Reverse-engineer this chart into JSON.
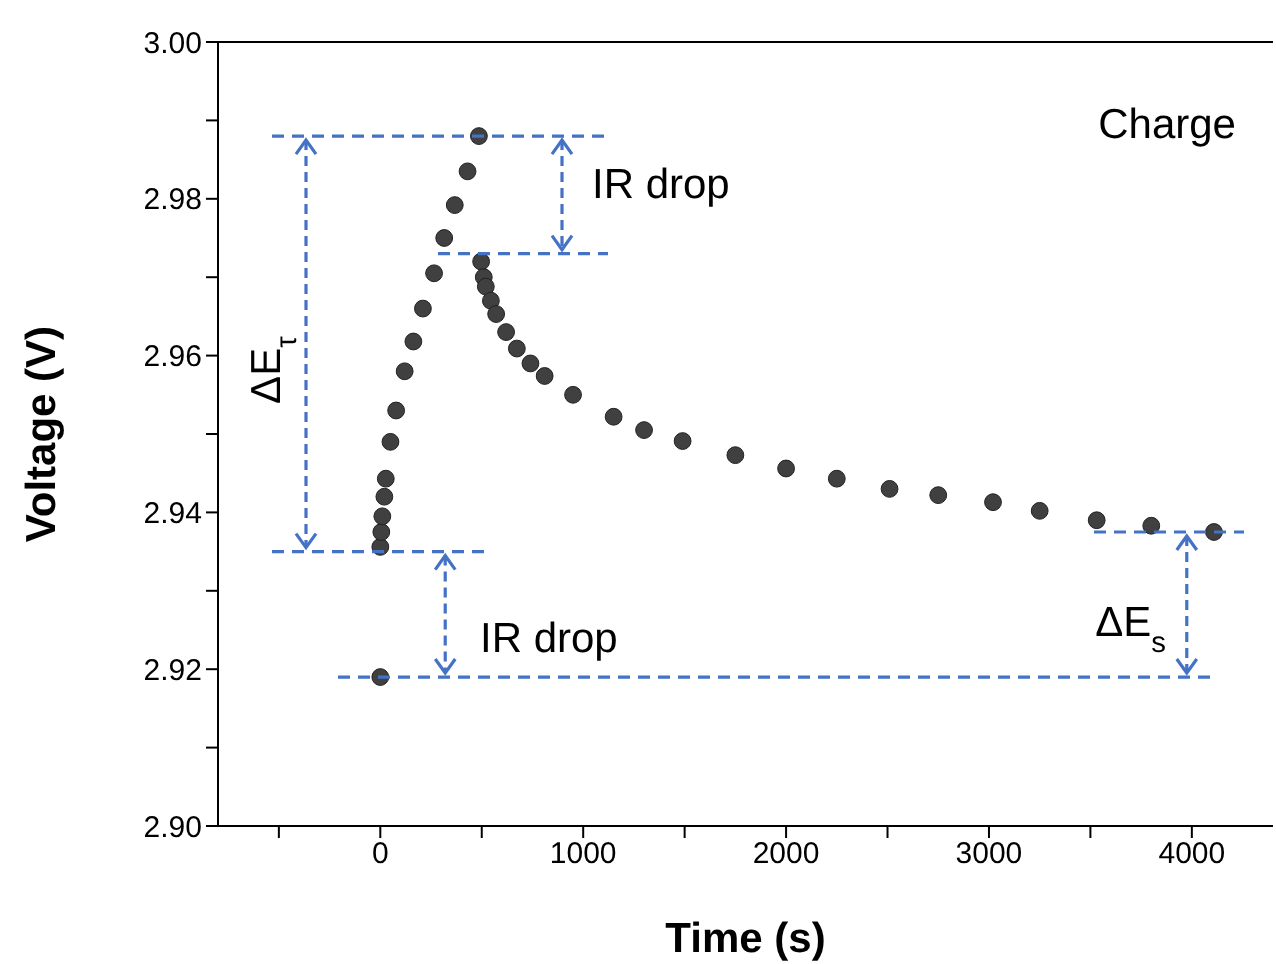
{
  "chart_data": {
    "type": "scatter",
    "xlabel": "Time (s)",
    "ylabel": "Voltage (V)",
    "xlim": [
      -800,
      4400
    ],
    "xticks": [
      {
        "value": -500,
        "label": null
      },
      0,
      {
        "value": 500,
        "label": null
      },
      1000,
      {
        "value": 1500,
        "label": null
      },
      2000,
      {
        "value": 2500,
        "label": null
      },
      3000,
      {
        "value": 3500,
        "label": null
      },
      4000
    ],
    "ylim": [
      2.9,
      3.0
    ],
    "yticks": [
      {
        "value": 2.9,
        "label": "2.90"
      },
      {
        "value": 2.91,
        "label": null
      },
      {
        "value": 2.92,
        "label": "2.92"
      },
      {
        "value": 2.93,
        "label": null
      },
      {
        "value": 2.94,
        "label": "2.94"
      },
      {
        "value": 2.95,
        "label": null
      },
      {
        "value": 2.96,
        "label": "2.96"
      },
      {
        "value": 2.97,
        "label": null
      },
      {
        "value": 2.98,
        "label": "2.98"
      },
      {
        "value": 2.99,
        "label": null
      },
      {
        "value": 3.0,
        "label": "3.00"
      }
    ],
    "ref_lines": [
      {
        "axis": "y",
        "value": 2.988,
        "color": "#4472c4",
        "line_style": "dashed"
      },
      {
        "axis": "y",
        "value": 2.973,
        "color": "#4472c4",
        "line_style": "dashed"
      },
      {
        "axis": "y",
        "value": 2.935,
        "color": "#4472c4",
        "line_style": "dashed"
      },
      {
        "axis": "y",
        "value": 2.919,
        "color": "#4472c4",
        "line_style": "dashed"
      },
      {
        "axis": "y",
        "value": 2.9375,
        "color": "#4472c4",
        "line_style": "dashed"
      }
    ],
    "marker": "circle",
    "legend": false,
    "grid": false,
    "series": [
      {
        "color": "#404040",
        "x": [
          0
        ],
        "values": [
          2.919
        ]
      },
      {
        "color": "#404040",
        "x": [
          0,
          5,
          10,
          20,
          27,
          50,
          78,
          120,
          163,
          210,
          265,
          315,
          367,
          430,
          486
        ],
        "values": [
          2.9356,
          2.9375,
          2.9395,
          2.942,
          2.9443,
          2.949,
          2.953,
          2.958,
          2.9618,
          2.966,
          2.9705,
          2.975,
          2.9792,
          2.9835,
          2.988
        ]
      },
      {
        "color": "#404040",
        "x": [
          497,
          510,
          520,
          545,
          571,
          620,
          673,
          740,
          810,
          950,
          1150,
          1300,
          1490,
          1750,
          2000,
          2250,
          2510,
          2750,
          3020,
          3250,
          3531,
          3800,
          4109
        ],
        "values": [
          2.972,
          2.97,
          2.9688,
          2.967,
          2.9653,
          2.963,
          2.9609,
          2.959,
          2.9574,
          2.955,
          2.9522,
          2.9505,
          2.9491,
          2.9473,
          2.9456,
          2.9443,
          2.943,
          2.9422,
          2.9413,
          2.9402,
          2.939,
          2.9383,
          2.9375
        ]
      }
    ],
    "annotations": [
      "Charge",
      "IR drop",
      "ΔE$_{τ}$",
      {
        "text": "IR drop",
        "x": 320,
        "y": 2.919
      },
      {
        "text": "ΔE$_{s}$",
        "x": 3975,
        "y": 2.919
      }
    ]
  }
}
